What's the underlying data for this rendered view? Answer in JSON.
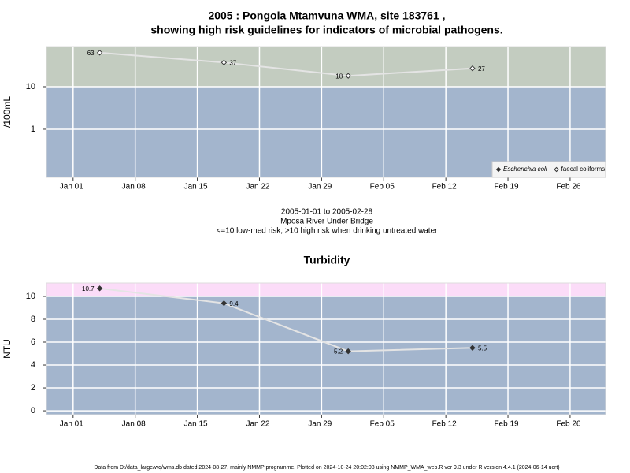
{
  "chart_data": [
    {
      "type": "line",
      "title": [
        "2005 : Pongola Mtamvuna WMA, site 183761 ,",
        "showing high risk guidelines for indicators of microbial pathogens."
      ],
      "ylabel": "/100mL",
      "log_scale": true,
      "x": [
        "2005-01-04",
        "2005-01-18",
        "2005-02-01",
        "2005-02-15"
      ],
      "xlim": [
        "2004-12-29",
        "2005-03-02"
      ],
      "xticks": [
        {
          "value": "2005-01-01",
          "label": "Jan 01"
        },
        {
          "value": "2005-01-08",
          "label": "Jan 08"
        },
        {
          "value": "2005-01-15",
          "label": "Jan 15"
        },
        {
          "value": "2005-01-22",
          "label": "Jan 22"
        },
        {
          "value": "2005-01-29",
          "label": "Jan 29"
        },
        {
          "value": "2005-02-05",
          "label": "Feb 05"
        },
        {
          "value": "2005-02-12",
          "label": "Feb 12"
        },
        {
          "value": "2005-02-19",
          "label": "Feb 19"
        },
        {
          "value": "2005-02-26",
          "label": "Feb 26"
        }
      ],
      "ylim": [
        0.074,
        88
      ],
      "yticks": [
        1,
        10
      ],
      "threshold": 10,
      "band_colors": {
        "above": "#c3ccc0",
        "below": "#a3b5cd"
      },
      "grid": true,
      "legend": "bottom-right",
      "series": [
        {
          "name": "Escherichia coli",
          "marker": "filled",
          "color": "#333333",
          "values": [
            null,
            null,
            null,
            null
          ]
        },
        {
          "name": "faecal coliforms",
          "marker": "open",
          "color": "#333333",
          "values": [
            63,
            37,
            18,
            27
          ]
        }
      ]
    },
    {
      "type": "line",
      "title": [
        "Turbidity"
      ],
      "ylabel": "NTU",
      "log_scale": false,
      "x": [
        "2005-01-04",
        "2005-01-18",
        "2005-02-01",
        "2005-02-15"
      ],
      "xlim": [
        "2004-12-29",
        "2005-03-02"
      ],
      "xticks": [
        {
          "value": "2005-01-01",
          "label": "Jan 01"
        },
        {
          "value": "2005-01-08",
          "label": "Jan 08"
        },
        {
          "value": "2005-01-15",
          "label": "Jan 15"
        },
        {
          "value": "2005-01-22",
          "label": "Jan 22"
        },
        {
          "value": "2005-01-29",
          "label": "Jan 29"
        },
        {
          "value": "2005-02-05",
          "label": "Feb 05"
        },
        {
          "value": "2005-02-12",
          "label": "Feb 12"
        },
        {
          "value": "2005-02-19",
          "label": "Feb 19"
        },
        {
          "value": "2005-02-26",
          "label": "Feb 26"
        }
      ],
      "ylim": [
        -0.34,
        11.17
      ],
      "yticks": [
        0,
        2,
        4,
        6,
        8,
        10
      ],
      "threshold": 10,
      "band_colors": {
        "above": "#fbdcf8",
        "below": "#a3b5cd"
      },
      "grid": true,
      "series": [
        {
          "name": "Turbidity",
          "marker": "filled",
          "color": "#333333",
          "values": [
            10.7,
            9.4,
            5.2,
            5.5
          ]
        }
      ]
    }
  ],
  "caption": [
    "2005-01-01 to 2005-02-28",
    "Mposa River Under Bridge",
    "<=10 low-med risk; >10 high risk when drinking untreated water"
  ],
  "footer": "Data from D:/data_large/wq/wms.db dated 2024-08-27, mainly NMMP programme. Plotted on 2024-10-24 20:02:08 using NMMP_WMA_web.R ver 9.3 under R version 4.4.1 (2024-06-14 ucrt)"
}
